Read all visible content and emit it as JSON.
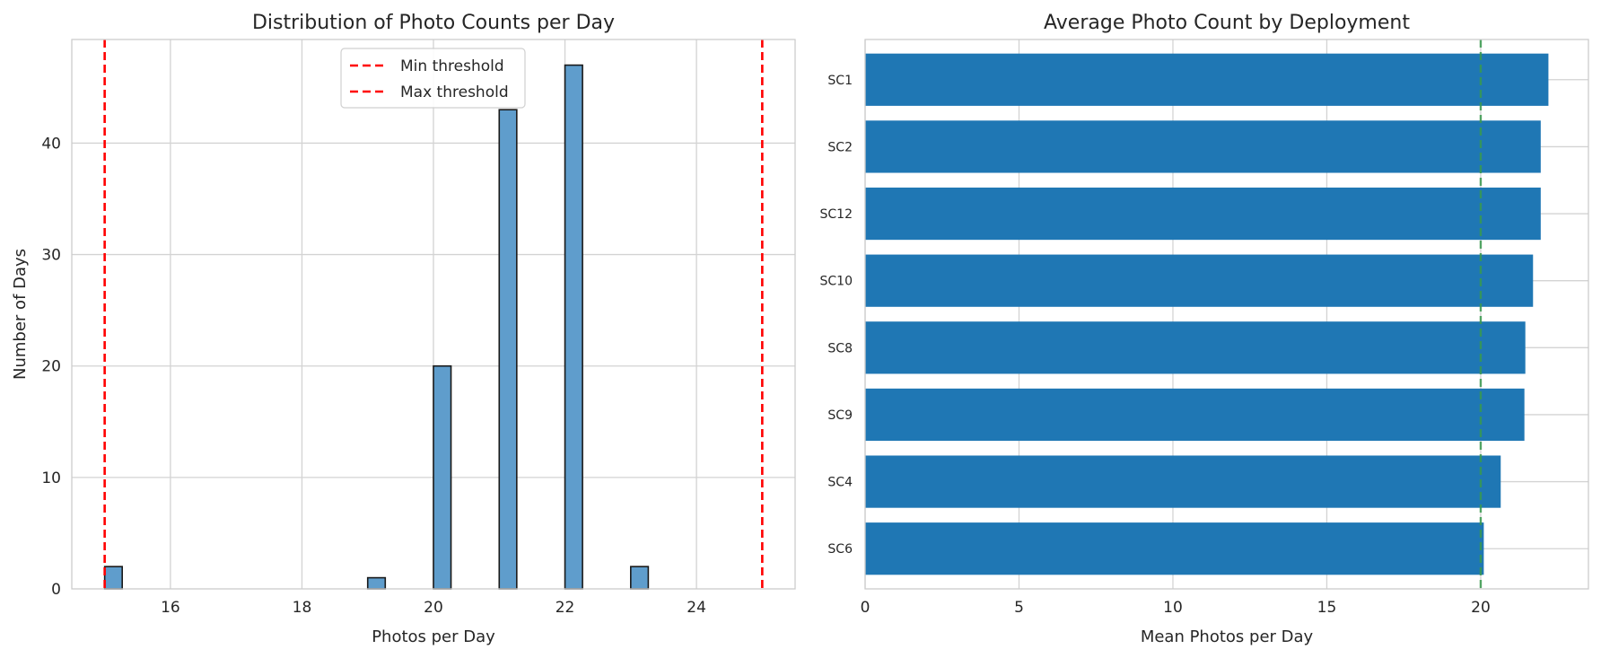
{
  "chart_data": [
    {
      "type": "bar",
      "subtype": "histogram",
      "title": "Distribution of Photo Counts per Day",
      "xlabel": "Photos per Day",
      "ylabel": "Number of Days",
      "xlim": [
        14.5,
        25.5
      ],
      "ylim": [
        0,
        49.3
      ],
      "xticks": [
        16,
        18,
        20,
        22,
        24
      ],
      "yticks": [
        0,
        10,
        20,
        30,
        40
      ],
      "bin_width": 0.267,
      "bars": [
        {
          "x": 15.0,
          "count": 2
        },
        {
          "x": 19.0,
          "count": 1
        },
        {
          "x": 20.0,
          "count": 20
        },
        {
          "x": 21.0,
          "count": 43
        },
        {
          "x": 22.0,
          "count": 47
        },
        {
          "x": 23.0,
          "count": 2
        }
      ],
      "bar_color": "#5f9dcc",
      "bar_edge_color": "#1a1a1a",
      "thresholds": [
        {
          "name": "Min threshold",
          "x": 15,
          "color": "#ff0000"
        },
        {
          "name": "Max threshold",
          "x": 25,
          "color": "#ff0000"
        }
      ],
      "legend": {
        "placement": "top-center",
        "entries": [
          "Min threshold",
          "Max threshold"
        ]
      },
      "grid": true
    },
    {
      "type": "bar",
      "orientation": "horizontal",
      "title": "Average Photo Count by Deployment",
      "xlabel": "Mean Photos per Day",
      "ylabel": "",
      "xlim": [
        0,
        23.5
      ],
      "xticks": [
        0,
        5,
        10,
        15,
        20
      ],
      "categories": [
        "SC1",
        "SC2",
        "SC12",
        "SC10",
        "SC8",
        "SC9",
        "SC4",
        "SC6"
      ],
      "values": [
        22.2,
        21.95,
        21.95,
        21.7,
        21.45,
        21.42,
        20.65,
        20.1
      ],
      "bar_color": "#1f77b4",
      "reference_line": {
        "x": 20,
        "color": "#3a9a4f"
      },
      "grid": true
    }
  ]
}
